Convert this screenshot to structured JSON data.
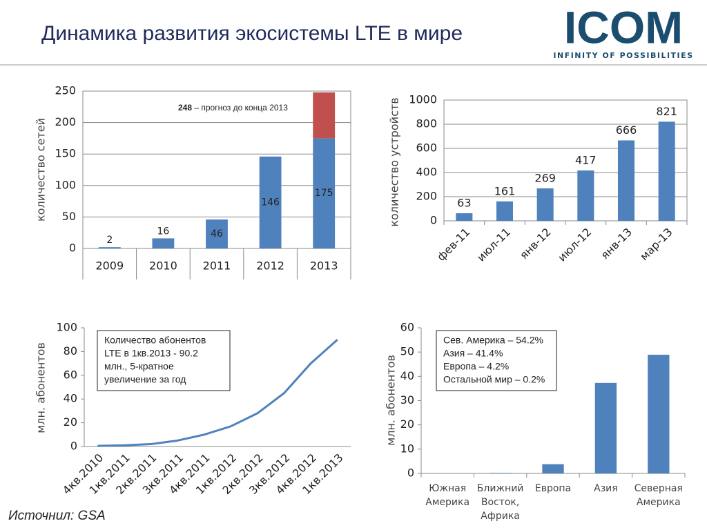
{
  "header": {
    "title": "Динамика развития экосистемы LTE в мире",
    "logo": "ICOM",
    "tagline": "INFINITY OF POSSIBILITIES"
  },
  "footer": "Источнил: GSA",
  "chart_data": [
    {
      "type": "bar",
      "stacked": true,
      "ylabel": "количество сетей",
      "categories": [
        "2009",
        "2010",
        "2011",
        "2012",
        "2013"
      ],
      "series": [
        {
          "color": "#4f81bd",
          "values": [
            2,
            16,
            46,
            146,
            175
          ]
        },
        {
          "color": "#c0504d",
          "values": [
            null,
            null,
            null,
            null,
            73
          ]
        }
      ],
      "value_labels_series": 0,
      "annotation_value": 248,
      "annotation": "– прогноз до конца 2013",
      "ylim": [
        0,
        250
      ],
      "yticks": [
        0,
        50,
        100,
        150,
        200,
        250
      ],
      "grid": true
    },
    {
      "type": "bar",
      "ylabel": "количество устройств",
      "categories": [
        "фев-11",
        "июл-11",
        "янв-12",
        "июл-12",
        "янв-13",
        "мар-13"
      ],
      "values": [
        63,
        161,
        269,
        417,
        666,
        821
      ],
      "color": "#4f81bd",
      "ylim": [
        0,
        1000
      ],
      "yticks": [
        0,
        200,
        400,
        600,
        800,
        1000
      ],
      "grid": true
    },
    {
      "type": "line",
      "ylabel": "млн. абонентов",
      "categories": [
        "4кв.2010",
        "1кв.2011",
        "2кв.2011",
        "3кв.2011",
        "4кв.2011",
        "1кв.2012",
        "2кв.2012",
        "3кв.2012",
        "4кв.2012",
        "1кв.2013"
      ],
      "values": [
        0.5,
        1,
        2,
        5,
        10,
        17,
        28,
        45,
        70,
        90
      ],
      "color": "#4f81bd",
      "annotation": [
        "Количество абонентов",
        "LTE в 1кв.2013 - 90.2",
        "млн., 5-кратное",
        "увеличение за год"
      ],
      "ylim": [
        0,
        100
      ],
      "yticks": [
        0,
        20,
        40,
        60,
        80,
        100
      ],
      "grid": false
    },
    {
      "type": "bar",
      "ylabel": "млн. абонентов",
      "categories": [
        [
          "Южная",
          "Америка"
        ],
        [
          "Ближний",
          "Восток,",
          "Африка"
        ],
        [
          "Европа"
        ],
        [
          "Азия"
        ],
        [
          "Северная",
          "Америка"
        ]
      ],
      "values": [
        0.1,
        0.2,
        3.8,
        37.3,
        48.9
      ],
      "color": "#4f81bd",
      "annotation": [
        "Сев. Америка – 54.2%",
        "Азия – 41.4%",
        "Европа – 4.2%",
        "Остальной мир – 0.2%"
      ],
      "ylim": [
        0,
        60
      ],
      "yticks": [
        0,
        10,
        20,
        30,
        40,
        50,
        60
      ],
      "grid": false
    }
  ]
}
